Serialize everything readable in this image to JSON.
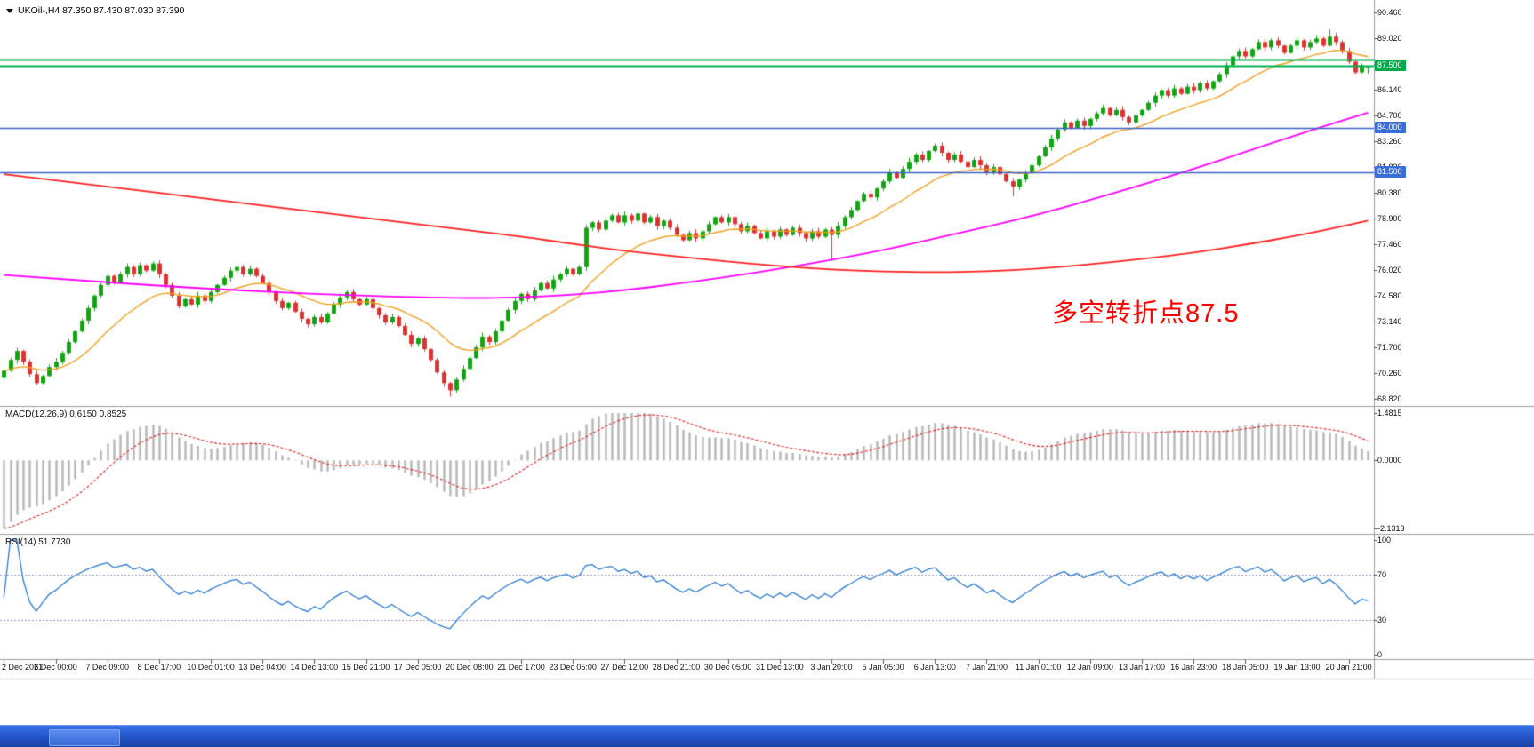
{
  "header": {
    "symbol_ohlc": "UKOil-,H4 87.350 87.430 87.030 87.390"
  },
  "annotation": {
    "text": "多空转折点87.5",
    "color": "#FF0000"
  },
  "chart_data": {
    "type": "candlestick",
    "symbol": "UKOil-",
    "timeframe": "H4",
    "last_ohlc": {
      "open": 87.35,
      "high": 87.43,
      "low": 87.03,
      "close": 87.39
    },
    "main": {
      "y_ticks": [
        "90.460",
        "89.020",
        "87.580",
        "86.140",
        "84.700",
        "83.260",
        "81.820",
        "80.380",
        "78.900",
        "77.460",
        "76.020",
        "74.580",
        "73.140",
        "71.700",
        "70.260",
        "68.820"
      ],
      "price_top": 90.46,
      "price_bottom": 68.82,
      "first_open": 70.0,
      "closes": [
        70.4,
        71.0,
        71.5,
        70.9,
        70.2,
        69.7,
        70.1,
        70.6,
        70.9,
        71.4,
        72.0,
        72.6,
        73.2,
        73.9,
        74.6,
        75.2,
        75.7,
        75.3,
        75.8,
        76.2,
        75.8,
        76.3,
        76.0,
        76.4,
        75.8,
        75.2,
        74.6,
        74.0,
        74.4,
        74.1,
        74.6,
        74.3,
        74.8,
        75.2,
        75.6,
        76.0,
        76.2,
        75.8,
        76.1,
        75.7,
        75.3,
        74.8,
        74.3,
        73.9,
        74.2,
        73.7,
        73.3,
        73.0,
        73.4,
        73.1,
        73.6,
        74.1,
        74.5,
        74.8,
        74.4,
        74.1,
        74.4,
        73.9,
        73.5,
        73.1,
        73.4,
        72.9,
        72.4,
        71.9,
        72.2,
        71.6,
        71.0,
        70.3,
        69.7,
        69.3,
        69.9,
        70.5,
        71.1,
        71.7,
        72.3,
        72.0,
        72.6,
        73.2,
        73.8,
        74.3,
        74.7,
        74.4,
        74.9,
        75.3,
        75.0,
        75.5,
        75.8,
        76.1,
        75.8,
        76.2,
        78.4,
        78.7,
        78.3,
        78.8,
        79.1,
        78.7,
        79.1,
        78.8,
        79.2,
        78.7,
        79.0,
        78.5,
        78.8,
        78.4,
        78.0,
        77.7,
        78.1,
        77.8,
        78.2,
        78.6,
        79.0,
        78.7,
        79.0,
        78.6,
        78.2,
        78.5,
        78.1,
        77.8,
        78.2,
        77.9,
        78.3,
        78.0,
        78.4,
        78.1,
        77.8,
        78.2,
        77.9,
        78.3,
        78.0,
        78.5,
        79.0,
        79.4,
        79.9,
        80.3,
        80.1,
        80.6,
        81.0,
        81.5,
        81.2,
        81.7,
        82.1,
        82.5,
        82.2,
        82.7,
        83.0,
        82.6,
        82.2,
        82.5,
        82.1,
        81.8,
        82.2,
        81.9,
        81.5,
        81.8,
        81.4,
        81.0,
        80.7,
        81.1,
        81.5,
        81.9,
        82.4,
        82.9,
        83.4,
        83.9,
        84.3,
        84.0,
        84.4,
        84.1,
        84.5,
        84.8,
        85.1,
        84.7,
        85.0,
        84.6,
        84.3,
        84.7,
        85.0,
        85.4,
        85.8,
        86.1,
        85.8,
        86.2,
        85.9,
        86.3,
        86.1,
        86.5,
        86.2,
        86.6,
        87.0,
        87.5,
        88.0,
        88.3,
        88.0,
        88.4,
        88.8,
        88.5,
        88.9,
        88.6,
        88.2,
        88.6,
        88.9,
        88.5,
        88.8,
        89.0,
        88.6,
        89.1,
        88.8,
        88.3,
        87.7,
        87.1,
        87.5,
        87.39
      ],
      "wick_overrides": {
        "69": {
          "low": 68.95
        },
        "128": {
          "low": 76.55
        },
        "156": {
          "low": 80.15
        },
        "205": {
          "high": 89.5
        }
      },
      "up_color": "#10a410",
      "down_color": "#dd3131",
      "ma_fast": {
        "period": 17,
        "color": "#efa020"
      },
      "ma_mid": {
        "color": "#ff00ff",
        "points": [
          [
            0,
            75.75
          ],
          [
            12,
            75.45
          ],
          [
            24,
            75.15
          ],
          [
            36,
            74.9
          ],
          [
            48,
            74.7
          ],
          [
            60,
            74.55
          ],
          [
            72,
            74.45
          ],
          [
            80,
            74.5
          ],
          [
            88,
            74.65
          ],
          [
            96,
            74.9
          ],
          [
            104,
            75.25
          ],
          [
            112,
            75.65
          ],
          [
            120,
            76.1
          ],
          [
            128,
            76.6
          ],
          [
            136,
            77.15
          ],
          [
            144,
            77.8
          ],
          [
            152,
            78.45
          ],
          [
            160,
            79.15
          ],
          [
            168,
            79.95
          ],
          [
            176,
            80.8
          ],
          [
            184,
            81.7
          ],
          [
            192,
            82.65
          ],
          [
            200,
            83.6
          ],
          [
            206,
            84.3
          ],
          [
            211,
            84.85
          ]
        ]
      },
      "ma_slow": {
        "color": "#ff2020",
        "points": [
          [
            0,
            81.4
          ],
          [
            16,
            80.7
          ],
          [
            32,
            80.0
          ],
          [
            48,
            79.3
          ],
          [
            64,
            78.6
          ],
          [
            80,
            77.9
          ],
          [
            88,
            77.5
          ],
          [
            96,
            77.1
          ],
          [
            104,
            76.8
          ],
          [
            112,
            76.5
          ],
          [
            120,
            76.25
          ],
          [
            128,
            76.05
          ],
          [
            136,
            75.95
          ],
          [
            144,
            75.9
          ],
          [
            152,
            75.95
          ],
          [
            160,
            76.1
          ],
          [
            168,
            76.35
          ],
          [
            176,
            76.65
          ],
          [
            184,
            77.0
          ],
          [
            192,
            77.45
          ],
          [
            200,
            77.95
          ],
          [
            206,
            78.4
          ],
          [
            211,
            78.8
          ]
        ]
      },
      "hlines": [
        {
          "price": 87.8,
          "color": "#00b050",
          "width": 2
        },
        {
          "price": 87.5,
          "color": "#00b050",
          "width": 2
        },
        {
          "price": 84.0,
          "color": "#3a62c8",
          "width": 1.4
        },
        {
          "price": 81.5,
          "color": "#3a62c8",
          "width": 1.4
        }
      ],
      "price_tags": [
        {
          "text": "87.500",
          "price": 87.5,
          "bg": "#00a84c"
        },
        {
          "text": "84.000",
          "price": 84.0,
          "bg": "#3a6fd8"
        },
        {
          "text": "81.500",
          "price": 81.5,
          "bg": "#3a6fd8"
        }
      ]
    },
    "macd": {
      "label": "MACD(12,26,9) 0.6150 0.8525",
      "fast": 12,
      "slow": 26,
      "signal": 9,
      "seed_gap": 2.3,
      "y_max": 1.4815,
      "y_min": -2.1313,
      "y_tick_labels": [
        "1.4815",
        "0.0000",
        "-2.1313"
      ],
      "y_tick_values": [
        1.4815,
        0,
        -2.1313
      ],
      "hist_color": "#b6b6b6",
      "signal_color": "#e02020"
    },
    "rsi": {
      "label": "RSI(14) 51.7730",
      "period": 14,
      "levels": [
        70,
        30
      ],
      "y_tick_labels": [
        "100",
        "70",
        "30",
        "0"
      ],
      "y_tick_values": [
        100,
        70,
        30,
        0
      ],
      "line_color": "#2a7ad2",
      "level_color": "#9a9ac0"
    },
    "x_labels": [
      "2 Dec 2021",
      "6 Dec 00:00",
      "7 Dec 09:00",
      "8 Dec 17:00",
      "10 Dec 01:00",
      "13 Dec 04:00",
      "14 Dec 13:00",
      "15 Dec 21:00",
      "17 Dec 05:00",
      "20 Dec 08:00",
      "21 Dec 17:00",
      "23 Dec 05:00",
      "27 Dec 12:00",
      "28 Dec 21:00",
      "30 Dec 05:00",
      "31 Dec 13:00",
      "3 Jan 20:00",
      "5 Jan 05:00",
      "6 Jan 13:00",
      "7 Jan 21:00",
      "11 Jan 01:00",
      "12 Jan 09:00",
      "13 Jan 17:00",
      "16 Jan 23:00",
      "18 Jan 05:00",
      "19 Jan 13:00",
      "20 Jan 21:00"
    ],
    "bars_per_label": 8
  }
}
